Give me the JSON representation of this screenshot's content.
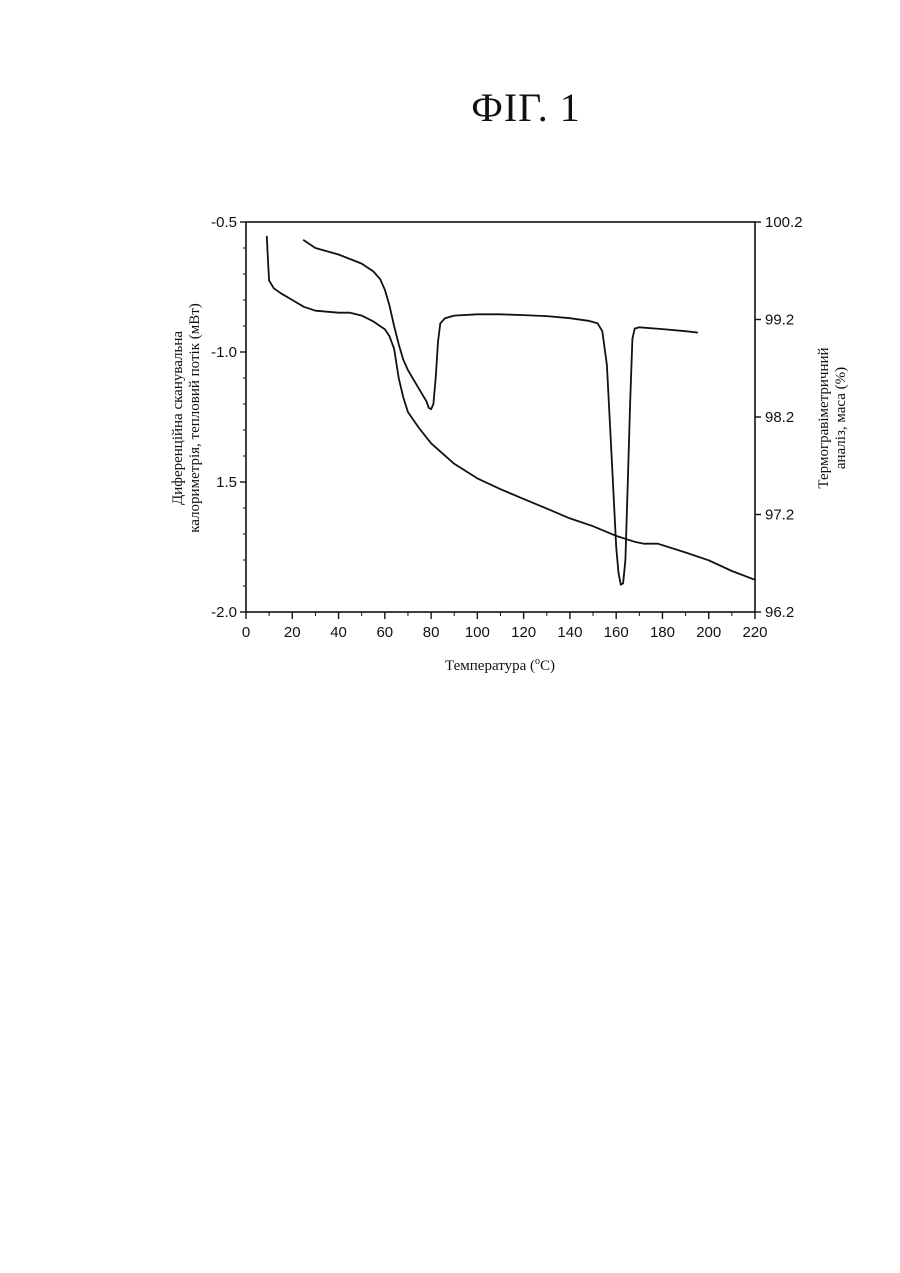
{
  "figure": {
    "title": "ФІГ. 1"
  },
  "chart_data": {
    "type": "line",
    "xlabel": "Температура (°C)",
    "xlabel_parts": {
      "prefix": "Температура (",
      "superscript": "o",
      "suffix": "C)"
    },
    "ylabel_left_lines": [
      "Диференційна сканувальна",
      "калориметрія, тепловий потік (мВт)"
    ],
    "ylabel_right_lines": [
      "Термогравіметричний",
      "аналіз, маса (%)"
    ],
    "xlim": [
      0,
      220
    ],
    "ylim_left": [
      -2.0,
      -0.5
    ],
    "ylim_right": [
      96.2,
      100.2
    ],
    "x_ticks": [
      0,
      20,
      40,
      60,
      80,
      100,
      120,
      140,
      160,
      180,
      200,
      220
    ],
    "left_ticks": [
      {
        "value": -0.5,
        "label": "-0.5"
      },
      {
        "value": -1.0,
        "label": "-1.0"
      },
      {
        "value": -1.5,
        "label": "1.5"
      },
      {
        "value": -2.0,
        "label": "-2.0"
      }
    ],
    "right_ticks": [
      {
        "value": 100.2,
        "label": "100.2"
      },
      {
        "value": 99.2,
        "label": "99.2"
      },
      {
        "value": 98.2,
        "label": "98.2"
      },
      {
        "value": 97.2,
        "label": "97.2"
      },
      {
        "value": 96.2,
        "label": "96.2"
      }
    ],
    "grid": false,
    "series": [
      {
        "axis": "left",
        "points": [
          [
            25,
            -0.57
          ],
          [
            30,
            -0.6
          ],
          [
            40,
            -0.625
          ],
          [
            50,
            -0.66
          ],
          [
            55,
            -0.69
          ],
          [
            58,
            -0.72
          ],
          [
            60,
            -0.76
          ],
          [
            62,
            -0.82
          ],
          [
            64,
            -0.9
          ],
          [
            66,
            -0.97
          ],
          [
            68,
            -1.03
          ],
          [
            70,
            -1.07
          ],
          [
            72,
            -1.1
          ],
          [
            74,
            -1.13
          ],
          [
            76,
            -1.16
          ],
          [
            78,
            -1.19
          ],
          [
            79,
            -1.215
          ],
          [
            80,
            -1.22
          ],
          [
            81,
            -1.2
          ],
          [
            82,
            -1.1
          ],
          [
            83,
            -0.96
          ],
          [
            84,
            -0.89
          ],
          [
            86,
            -0.87
          ],
          [
            90,
            -0.86
          ],
          [
            100,
            -0.855
          ],
          [
            110,
            -0.855
          ],
          [
            120,
            -0.858
          ],
          [
            130,
            -0.862
          ],
          [
            140,
            -0.87
          ],
          [
            148,
            -0.88
          ],
          [
            152,
            -0.89
          ],
          [
            154,
            -0.92
          ],
          [
            156,
            -1.05
          ],
          [
            158,
            -1.4
          ],
          [
            160,
            -1.75
          ],
          [
            161,
            -1.85
          ],
          [
            162,
            -1.895
          ],
          [
            163,
            -1.89
          ],
          [
            164,
            -1.8
          ],
          [
            165,
            -1.5
          ],
          [
            166,
            -1.2
          ],
          [
            167,
            -0.95
          ],
          [
            168,
            -0.91
          ],
          [
            170,
            -0.905
          ],
          [
            180,
            -0.912
          ],
          [
            190,
            -0.92
          ],
          [
            195,
            -0.925
          ]
        ]
      },
      {
        "axis": "right",
        "points": [
          [
            9,
            100.05
          ],
          [
            9.5,
            99.8
          ],
          [
            10,
            99.6
          ],
          [
            12,
            99.52
          ],
          [
            15,
            99.47
          ],
          [
            20,
            99.4
          ],
          [
            25,
            99.33
          ],
          [
            30,
            99.29
          ],
          [
            35,
            99.28
          ],
          [
            40,
            99.27
          ],
          [
            45,
            99.27
          ],
          [
            50,
            99.24
          ],
          [
            55,
            99.18
          ],
          [
            60,
            99.1
          ],
          [
            62,
            99.03
          ],
          [
            64,
            98.9
          ],
          [
            66,
            98.6
          ],
          [
            68,
            98.4
          ],
          [
            70,
            98.25
          ],
          [
            75,
            98.08
          ],
          [
            80,
            97.93
          ],
          [
            90,
            97.72
          ],
          [
            100,
            97.57
          ],
          [
            110,
            97.46
          ],
          [
            120,
            97.36
          ],
          [
            130,
            97.26
          ],
          [
            140,
            97.16
          ],
          [
            150,
            97.08
          ],
          [
            160,
            96.98
          ],
          [
            168,
            96.92
          ],
          [
            172,
            96.9
          ],
          [
            178,
            96.9
          ],
          [
            190,
            96.81
          ],
          [
            200,
            96.73
          ],
          [
            210,
            96.62
          ],
          [
            220,
            96.53
          ]
        ]
      }
    ]
  }
}
